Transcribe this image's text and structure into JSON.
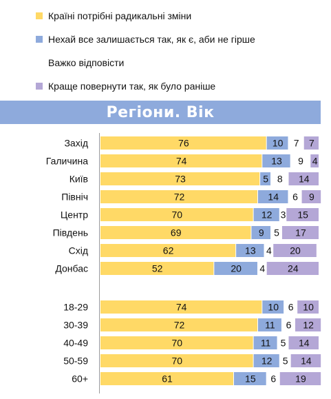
{
  "legend": [
    {
      "label": "Країні потрібні радикальні зміни",
      "color": "#ffd966"
    },
    {
      "label": "Нехай все залишається так, як є, аби не гірше",
      "color": "#8eaadc"
    },
    {
      "label": "Важко відповісти",
      "color": "#ffffff"
    },
    {
      "label": "Краще повернути так, як було раніше",
      "color": "#b4a7d6"
    }
  ],
  "banner": {
    "title": "Регіони. Вік"
  },
  "chart_data": {
    "type": "bar",
    "orientation": "horizontal",
    "stacked": true,
    "groups": [
      {
        "categories": [
          "Захід",
          "Галичина",
          "Київ",
          "Північ",
          "Центр",
          "Південь",
          "Схід",
          "Донбас"
        ]
      },
      {
        "categories": [
          "18-29",
          "30-39",
          "40-49",
          "50-59",
          "60+"
        ]
      }
    ],
    "categories": [
      "Захід",
      "Галичина",
      "Київ",
      "Північ",
      "Центр",
      "Південь",
      "Схід",
      "Донбас",
      "18-29",
      "30-39",
      "40-49",
      "50-59",
      "60+"
    ],
    "series": [
      {
        "name": "Країні потрібні радикальні зміни",
        "color": "#ffd966",
        "values": [
          76,
          74,
          73,
          72,
          70,
          69,
          62,
          52,
          74,
          72,
          70,
          70,
          61
        ]
      },
      {
        "name": "Нехай все залишається так, як є, аби не гірше",
        "color": "#8eaadc",
        "values": [
          10,
          13,
          5,
          14,
          12,
          9,
          13,
          20,
          10,
          11,
          11,
          12,
          15
        ]
      },
      {
        "name": "Важко відповісти",
        "color": "#ffffff",
        "values": [
          7,
          9,
          8,
          6,
          3,
          5,
          4,
          4,
          6,
          6,
          5,
          5,
          6
        ]
      },
      {
        "name": "Краще повернути так, як було раніше",
        "color": "#b4a7d6",
        "values": [
          7,
          4,
          14,
          9,
          15,
          17,
          20,
          24,
          10,
          12,
          14,
          14,
          19
        ]
      }
    ],
    "xlim": [
      0,
      100
    ],
    "legend_position": "top",
    "grid": false
  }
}
